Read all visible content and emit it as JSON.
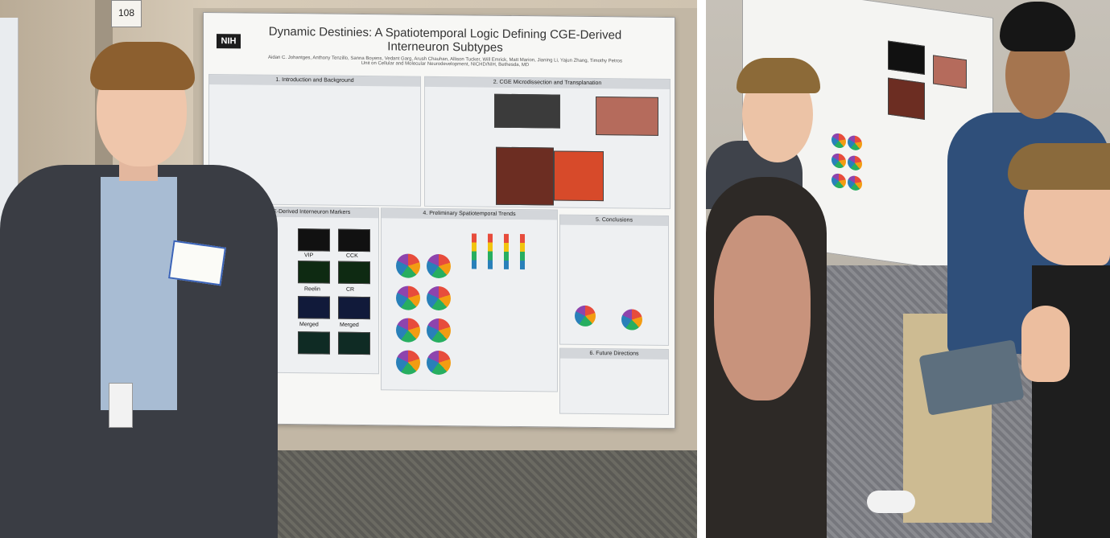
{
  "left_photo": {
    "room_number": "108",
    "poster": {
      "logo": "NIH",
      "title": "Dynamic Destinies: A Spatiotemporal Logic Defining CGE-Derived Interneuron Subtypes",
      "authors": "Aidan C. Johantges, Anthony Tenzillo, Sanna Boyens, Vedant Garg, Arush Chauhan, Allison Tucker, Will Emrick, Matt Marion, Jianing Li, Yajun Zhang, Timothy Petros",
      "affiliation": "Unit on Cellular and Molecular Neurodevelopment, NICHD/NIH, Bethesda, MD",
      "sections": [
        "1. Introduction and Background",
        "2. CGE Microdissection and Transplanation",
        "Identifying CGE-Derived Interneuron Markers",
        "4. Preliminary Spatiotemporal Trends",
        "5. Conclusions",
        "6. Future Directions"
      ],
      "panel_labels": [
        "VIP",
        "CCK",
        "Reelin",
        "CR",
        "Merged",
        "Merged"
      ]
    }
  }
}
